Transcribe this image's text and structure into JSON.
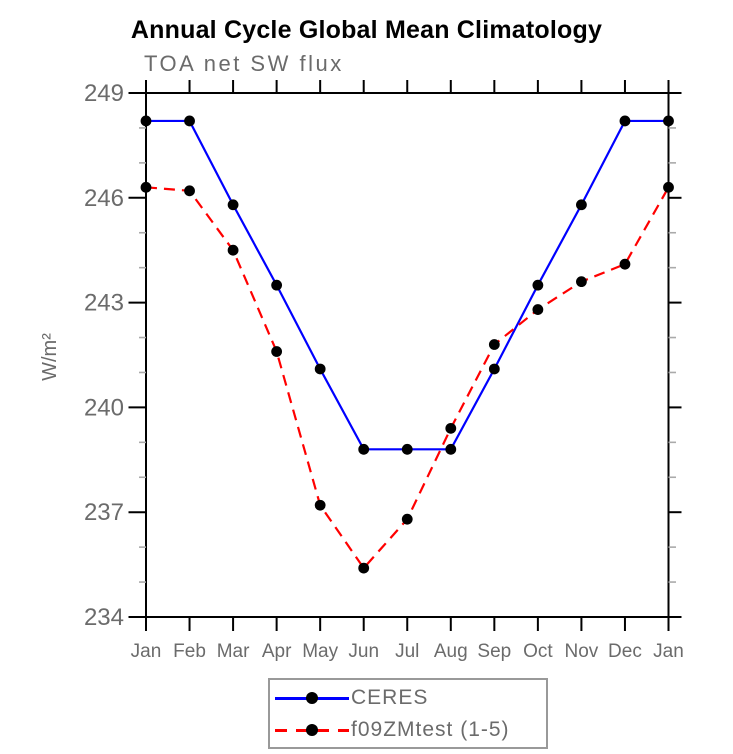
{
  "figure": {
    "title": "Annual Cycle Global Mean Climatology",
    "subtitle": "TOA net SW flux"
  },
  "chart_data": {
    "type": "line",
    "title": "Annual Cycle Global Mean Climatology",
    "subtitle": "TOA net SW flux",
    "xlabel": "",
    "ylabel": "W/m²",
    "categories": [
      "Jan",
      "Feb",
      "Mar",
      "Apr",
      "May",
      "Jun",
      "Jul",
      "Aug",
      "Sep",
      "Oct",
      "Nov",
      "Dec",
      "Jan"
    ],
    "series": [
      {
        "name": "CERES",
        "line_style": "solid",
        "color": "#0000ff",
        "marker": "filled-circle",
        "marker_color": "#000000",
        "values": [
          248.2,
          248.2,
          245.8,
          243.5,
          241.1,
          238.8,
          238.8,
          238.8,
          241.1,
          243.5,
          245.8,
          248.2,
          248.2
        ]
      },
      {
        "name": "f09ZMtest (1-5)",
        "line_style": "dashed",
        "color": "#ff0000",
        "marker": "filled-circle",
        "marker_color": "#000000",
        "values": [
          246.3,
          246.2,
          244.5,
          241.6,
          237.2,
          235.4,
          236.8,
          239.4,
          241.8,
          242.8,
          243.6,
          244.1,
          246.3
        ]
      }
    ],
    "ylim": [
      234,
      249
    ],
    "yticks": [
      234,
      237,
      240,
      243,
      246,
      249
    ],
    "y_minor_tick_interval": 1,
    "grid": false,
    "legend_position": "bottom-center"
  },
  "colors": {
    "axis": "#000000",
    "minor_tick": "#aaaaaa",
    "tick_label": "#6b6b6b",
    "title": "#000000",
    "subtitle": "#6b6b6b",
    "legend_border": "#999999",
    "background": "#ffffff"
  }
}
